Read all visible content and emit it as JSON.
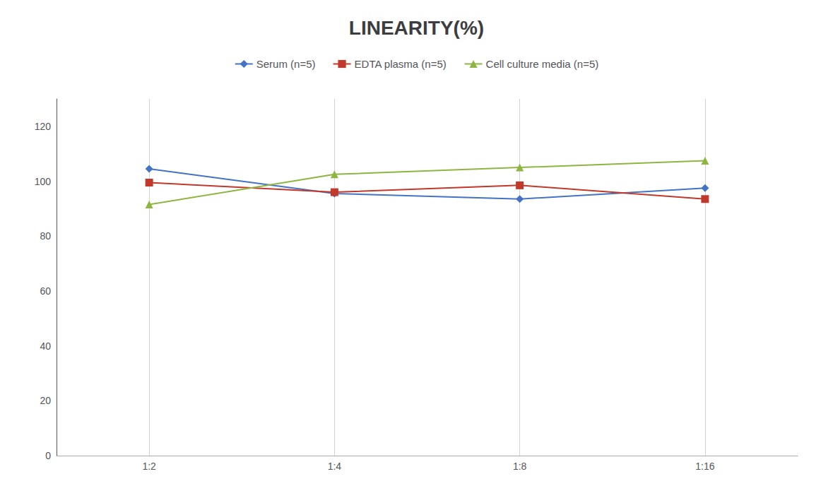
{
  "chart_data": {
    "type": "line",
    "title": "LINEARITY(%)",
    "categories": [
      "1:2",
      "1:4",
      "1:8",
      "1:16"
    ],
    "series": [
      {
        "name": "Serum (n=5)",
        "color": "#4472C4",
        "marker": "diamond",
        "values": [
          104.5,
          95.5,
          93.5,
          97.5
        ]
      },
      {
        "name": "EDTA plasma (n=5)",
        "color": "#C0392B",
        "marker": "square",
        "values": [
          99.5,
          96.0,
          98.5,
          93.5
        ]
      },
      {
        "name": "Cell culture media (n=5)",
        "color": "#8DB640",
        "marker": "triangle",
        "values": [
          91.5,
          102.5,
          105.0,
          107.5
        ]
      }
    ],
    "ylim": [
      0,
      130
    ],
    "yticks": [
      0,
      20,
      40,
      60,
      80,
      100,
      120
    ],
    "grid": true,
    "legend": "top"
  }
}
